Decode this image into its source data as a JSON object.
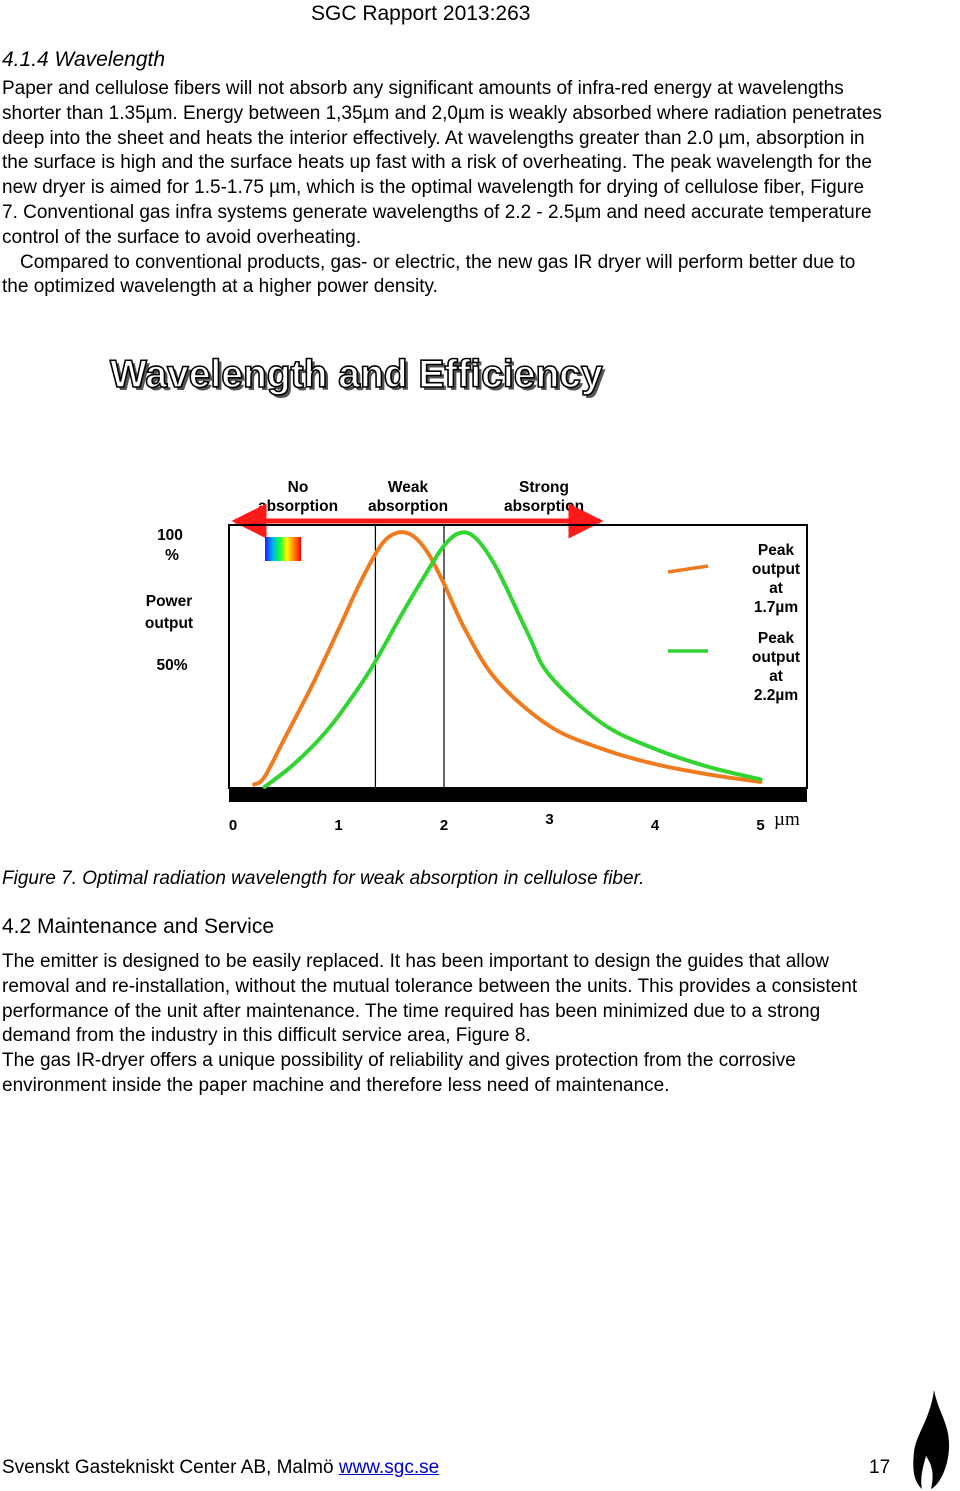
{
  "header": {
    "report_id": "SGC Rapport 2013:263"
  },
  "section_4_1_4": {
    "heading": "4.1.4 Wavelength",
    "paragraph_1": "Paper and cellulose fibers will not absorb any significant amounts of infra-red energy at wavelengths shorter than 1.35µm. Energy between 1,35µm and 2,0µm is weakly absorbed where radiation penetrates deep into the sheet and heats the interior effectively. At wavelengths greater than 2.0 µm, absorption in the surface is high and the surface heats up fast with a risk of overheating. The peak wavelength for the new dryer is aimed for 1.5-1.75 µm, which is the optimal wavelength for drying of cellulose fiber, Figure 7. Conventional gas infra systems generate wavelengths of 2.2 - 2.5µm and need accurate temperature control of the surface to avoid overheating.",
    "paragraph_2": "Compared to conventional products, gas- or electric, the new gas IR dryer will perform better due to the optimized wavelength at a higher power density."
  },
  "chart_data": {
    "type": "line",
    "title": "Wavelength and Efficiency",
    "xlabel": "µm",
    "ylabel": "Power output",
    "x_ticks": [
      "0",
      "1",
      "2",
      "3",
      "4",
      "5"
    ],
    "xlim": [
      0,
      5
    ],
    "ylim": [
      0,
      100
    ],
    "y_ticks": [
      "100 %",
      "50%"
    ],
    "regions": [
      {
        "label_line1": "No",
        "label_line2": "absorption",
        "x_range": [
          0,
          1.35
        ]
      },
      {
        "label_line1": "Weak",
        "label_line2": "absorption",
        "x_range": [
          1.35,
          2.0
        ]
      },
      {
        "label_line1": "Strong",
        "label_line2": "absorption",
        "x_range": [
          2.0,
          5.0
        ]
      }
    ],
    "series": [
      {
        "name": "Peak output at 1.7µm",
        "legend_lines": [
          "Peak",
          "output",
          "at",
          "1.7µm"
        ],
        "color": "#f07a1e",
        "x": [
          0.2,
          0.3,
          0.5,
          0.75,
          1.0,
          1.2,
          1.4,
          1.55,
          1.7,
          1.85,
          2.0,
          2.2,
          2.5,
          3.0,
          3.5,
          4.0,
          4.5,
          5.0
        ],
        "y": [
          1,
          4,
          20,
          40,
          62,
          80,
          95,
          100,
          99,
          92,
          80,
          62,
          42,
          24,
          15,
          9,
          5,
          2
        ]
      },
      {
        "name": "Peak output at 2.2µm",
        "legend_lines": [
          "Peak",
          "output",
          "at",
          "2.2µm"
        ],
        "color": "#32d432",
        "x": [
          0.3,
          0.55,
          0.8,
          1.0,
          1.3,
          1.6,
          1.8,
          2.0,
          2.15,
          2.3,
          2.5,
          2.8,
          3.0,
          3.5,
          4.0,
          4.5,
          5.0
        ],
        "y": [
          0,
          8,
          18,
          28,
          46,
          68,
          82,
          95,
          100,
          98,
          86,
          60,
          44,
          25,
          15,
          8,
          3
        ]
      }
    ],
    "spectrum_icon": "rainbow-spectrum-icon"
  },
  "figure_7": {
    "caption": "Figure 7. Optimal radiation wavelength for weak absorption in cellulose fiber."
  },
  "section_4_2": {
    "heading": "4.2 Maintenance and Service",
    "paragraph_1": "The emitter is designed to be easily replaced. It has been important to design the guides that allow removal and re-installation, without the mutual tolerance between the units. This provides a consistent performance of the unit after maintenance. The time required has been minimized due to a strong demand from the industry in this difficult service area, Figure 8.",
    "paragraph_2": "The gas IR-dryer offers a unique possibility of reliability and gives protection from the corrosive environment inside the paper machine and therefore less need of maintenance."
  },
  "footer": {
    "organization": "Svenskt Gastekniskt Center AB, Malmö",
    "website": "www.sgc.se",
    "page_number": "17",
    "logo_icon": "flame-logo-icon"
  }
}
